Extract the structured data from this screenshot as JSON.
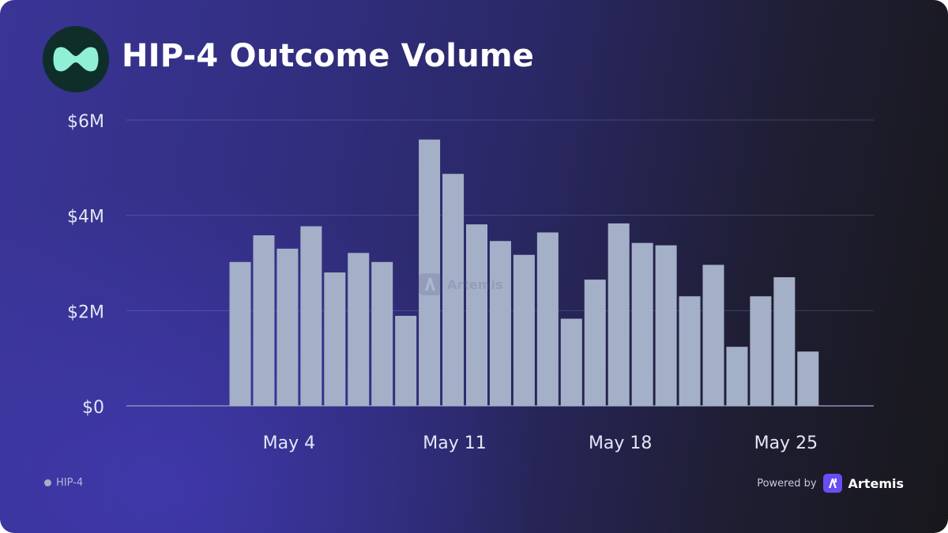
{
  "header": {
    "title": "HIP-4 Outcome Volume",
    "logo_icon": "hyperliquid-logo-icon"
  },
  "chart_data": {
    "type": "bar",
    "title": "HIP-4 Outcome Volume",
    "xlabel": "",
    "ylabel": "",
    "ylim": [
      0,
      6000000
    ],
    "yticks": [
      {
        "value": 0,
        "label": "$0"
      },
      {
        "value": 2000000,
        "label": "$2M"
      },
      {
        "value": 4000000,
        "label": "$4M"
      },
      {
        "value": 6000000,
        "label": "$6M"
      }
    ],
    "xticks": [
      {
        "index": 2,
        "label": "May 4"
      },
      {
        "index": 9,
        "label": "May 11"
      },
      {
        "index": 16,
        "label": "May 18"
      },
      {
        "index": 23,
        "label": "May 25"
      }
    ],
    "categories": [
      "May 2",
      "May 3",
      "May 4",
      "May 5",
      "May 6",
      "May 7",
      "May 8",
      "May 9",
      "May 10",
      "May 11",
      "May 12",
      "May 13",
      "May 14",
      "May 15",
      "May 16",
      "May 17",
      "May 18",
      "May 19",
      "May 20",
      "May 21",
      "May 22",
      "May 23",
      "May 24",
      "May 25",
      "May 26"
    ],
    "series": [
      {
        "name": "HIP-4",
        "values": [
          3020000,
          3580000,
          3300000,
          3770000,
          2800000,
          3210000,
          3020000,
          1890000,
          5590000,
          4870000,
          3810000,
          3460000,
          3170000,
          3640000,
          1830000,
          2650000,
          3830000,
          3420000,
          3370000,
          2300000,
          2960000,
          1240000,
          2300000,
          2700000,
          1140000
        ]
      }
    ],
    "grid": true,
    "legend": "bottom-left",
    "bar_color": "#a4b0c8"
  },
  "watermark": {
    "text": "Artemis"
  },
  "legend": {
    "label": "HIP-4"
  },
  "footer": {
    "powered_by": "Powered by",
    "brand": "Artemis"
  },
  "colors": {
    "accent": "#6a4df2",
    "logo_bg": "#0f2e2a",
    "logo_mark": "#8ff0d6"
  }
}
